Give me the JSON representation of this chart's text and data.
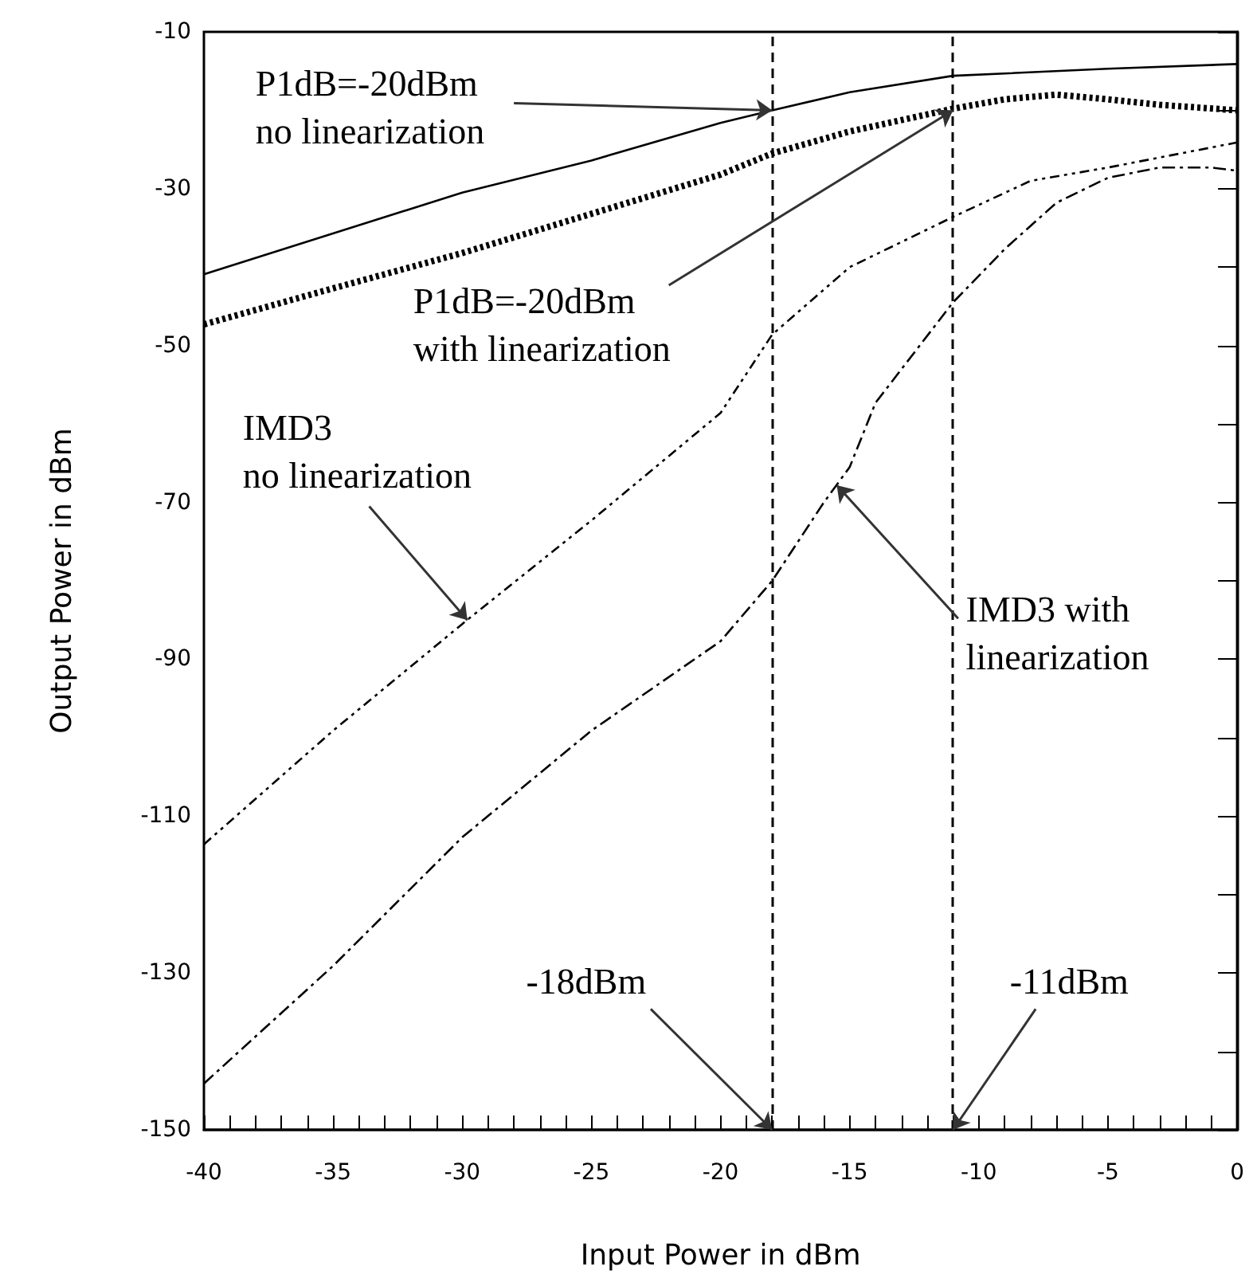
{
  "chart_data": {
    "type": "line",
    "xlabel": "Input Power in dBm",
    "ylabel": "Output Power in dBm",
    "xlim": [
      -40,
      0
    ],
    "xticks": [
      -40,
      -35,
      -30,
      -25,
      -20,
      -15,
      -10,
      -5,
      0
    ],
    "ylim": [
      -150,
      -10
    ],
    "yticks": [
      -150,
      -130,
      -110,
      -90,
      -70,
      -50,
      -30,
      -10
    ],
    "grid": false,
    "marker": "none",
    "series": [
      {
        "color": "#000000",
        "line_style": "solid",
        "x": [
          -40,
          -30,
          -25,
          -20,
          -18,
          -15,
          -11,
          -5,
          0
        ],
        "values": [
          -40.9,
          -30.5,
          -26.4,
          -21.6,
          -20,
          -17.7,
          -15.6,
          -14.7,
          -14.1
        ]
      },
      {
        "color": "#000000",
        "line_style": "dotted",
        "x": [
          -40,
          -35,
          -30,
          -25,
          -20,
          -18,
          -15,
          -11,
          -9,
          -7,
          -5,
          -3,
          0
        ],
        "values": [
          -47.3,
          -42.7,
          -38.2,
          -33.2,
          -28.2,
          -25.5,
          -22.7,
          -19.8,
          -18.6,
          -18,
          -18.6,
          -19.3,
          -20
        ]
      },
      {
        "color": "#000000",
        "line_style": "dashdotdot",
        "x": [
          -40,
          -35,
          -30,
          -25,
          -20,
          -18,
          -15,
          -11,
          -8,
          -5,
          0
        ],
        "values": [
          -113.6,
          -99.1,
          -85.5,
          -72.3,
          -58.6,
          -48.6,
          -40,
          -33.6,
          -29,
          -27.3,
          -24.1
        ]
      },
      {
        "color": "#000000",
        "line_style": "dashdot",
        "x": [
          -40,
          -35,
          -30,
          -25,
          -20,
          -18,
          -16,
          -15,
          -14,
          -11,
          -9,
          -7,
          -5,
          -3,
          -1,
          0
        ],
        "values": [
          -144.1,
          -129.1,
          -112.7,
          -99.1,
          -87.7,
          -80,
          -70,
          -65.5,
          -57.3,
          -44.5,
          -37.7,
          -31.8,
          -28.6,
          -27.3,
          -27.3,
          -27.7
        ]
      }
    ],
    "ref_lines": [
      {
        "axis": "x",
        "value": -18,
        "color": "#000000",
        "line_style": "dashed"
      },
      {
        "axis": "x",
        "value": -11,
        "color": "#000000",
        "line_style": "dashed"
      }
    ],
    "annotations": [
      {
        "text": "P1dB=-20dBm\nno linearization",
        "x": -18,
        "y": -20
      },
      {
        "text": "P1dB=-20dBm\nwith linearization",
        "x": -11,
        "y": -20
      },
      {
        "text": "IMD3\nno linearization",
        "x": -29.8,
        "y": -85
      },
      {
        "text": "IMD3 with\nlinearization",
        "x": -15.5,
        "y": -67.8
      },
      {
        "text": "-18dBm",
        "x": -18,
        "y": -150
      },
      {
        "text": "-11dBm",
        "x": -11,
        "y": -150
      }
    ]
  }
}
